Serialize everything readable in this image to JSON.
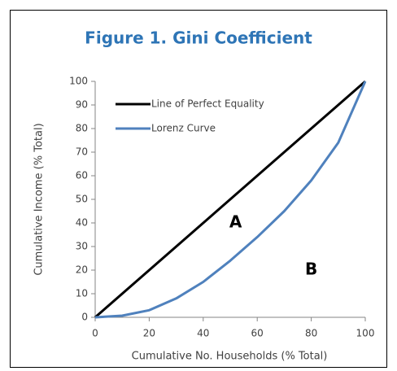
{
  "chart_data": {
    "type": "line",
    "title": "Figure 1. Gini Coefficient",
    "x_label": "Cumulative No. Households (% Total)",
    "y_label": "Cumulative Income (% Total)",
    "xlim": [
      0,
      100
    ],
    "xticks": [
      0,
      20,
      40,
      60,
      80,
      100
    ],
    "ylim": [
      0,
      100
    ],
    "yticks": [
      0,
      10,
      20,
      30,
      40,
      50,
      60,
      70,
      80,
      90,
      100
    ],
    "grid": false,
    "legend": "upper left",
    "series": [
      {
        "name": "Line of Perfect Equality",
        "color": "#000000",
        "x": [
          0,
          100
        ],
        "values": [
          0,
          100
        ]
      },
      {
        "name": "Lorenz Curve",
        "color": "#4f81bd",
        "x": [
          0,
          10,
          20,
          30,
          40,
          50,
          60,
          70,
          80,
          90,
          100
        ],
        "values": [
          0,
          0.7,
          3,
          8,
          15,
          24,
          34,
          45,
          58,
          74,
          100
        ]
      }
    ],
    "annotations": [
      "A",
      "B"
    ]
  }
}
